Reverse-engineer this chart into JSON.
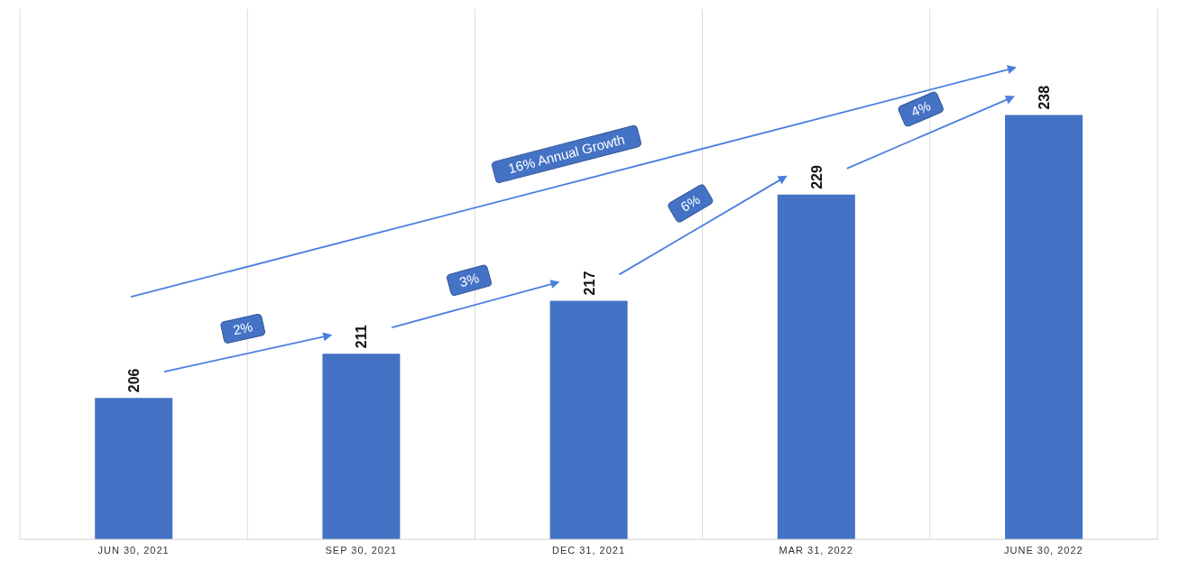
{
  "chart_data": {
    "type": "bar",
    "categories": [
      "JUN 30, 2021",
      "SEP 30, 2021",
      "DEC 31, 2021",
      "MAR 31, 2022",
      "JUNE 30, 2022"
    ],
    "values": [
      206,
      211,
      217,
      229,
      238
    ],
    "color": "#4472c4",
    "ylim": [
      190,
      250
    ],
    "data_labels": true,
    "tick_labels": "x",
    "grid": "x",
    "annotations": [
      "2%",
      "3%",
      "6%",
      "4%",
      "16% Annual Growth"
    ]
  }
}
